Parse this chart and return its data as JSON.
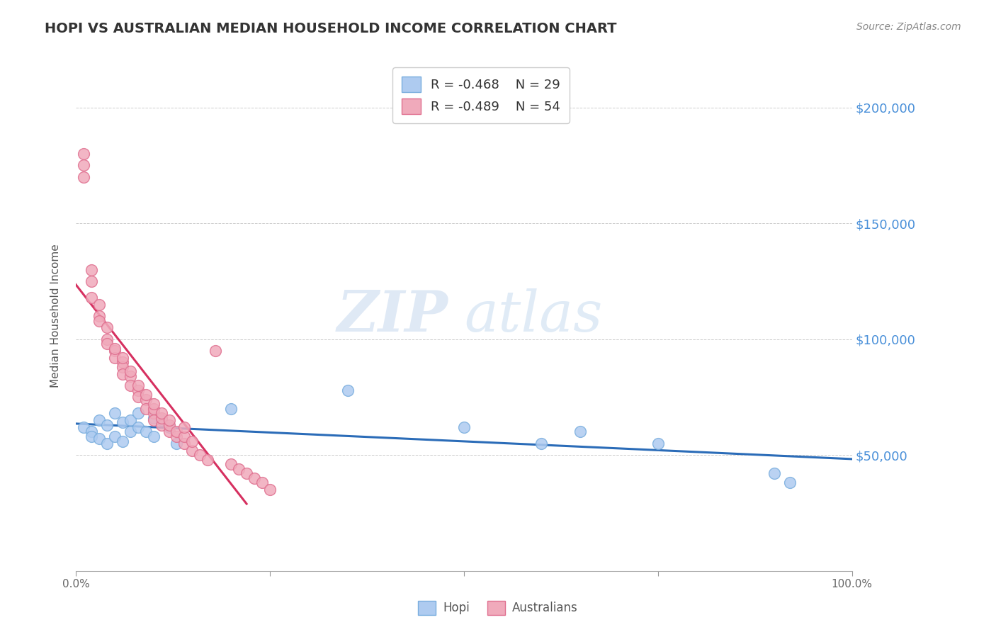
{
  "title": "HOPI VS AUSTRALIAN MEDIAN HOUSEHOLD INCOME CORRELATION CHART",
  "source": "Source: ZipAtlas.com",
  "ylabel": "Median Household Income",
  "xlim": [
    0,
    1.0
  ],
  "ylim": [
    0,
    220000
  ],
  "yticks": [
    0,
    50000,
    100000,
    150000,
    200000
  ],
  "ytick_labels": [
    "",
    "$50,000",
    "$100,000",
    "$150,000",
    "$200,000"
  ],
  "bg_color": "#ffffff",
  "grid_color": "#cccccc",
  "title_color": "#333333",
  "axis_label_color": "#555555",
  "right_tick_color": "#4a90d9",
  "hopi_color": "#aecbf0",
  "hopi_edge": "#7aaede",
  "australians_color": "#f0aabb",
  "australians_edge": "#e07090",
  "hopi_trend_color": "#2b6cb8",
  "australians_trend_color": "#d63060",
  "legend_R_hopi": "R = -0.468",
  "legend_N_hopi": "N = 29",
  "legend_R_aus": "R = -0.489",
  "legend_N_aus": "N = 54",
  "watermark_zip": "ZIP",
  "watermark_atlas": "atlas",
  "watermark_color_zip": "#c8d8ee",
  "watermark_color_atlas": "#b0cce8",
  "hopi_x": [
    0.01,
    0.02,
    0.02,
    0.03,
    0.03,
    0.04,
    0.04,
    0.05,
    0.05,
    0.06,
    0.06,
    0.07,
    0.07,
    0.08,
    0.08,
    0.09,
    0.1,
    0.1,
    0.11,
    0.12,
    0.13,
    0.2,
    0.35,
    0.5,
    0.6,
    0.65,
    0.75,
    0.9,
    0.92
  ],
  "hopi_y": [
    62000,
    60000,
    58000,
    65000,
    57000,
    63000,
    55000,
    68000,
    58000,
    64000,
    56000,
    65000,
    60000,
    68000,
    62000,
    60000,
    66000,
    58000,
    65000,
    62000,
    55000,
    70000,
    78000,
    62000,
    55000,
    60000,
    55000,
    42000,
    38000
  ],
  "aus_x": [
    0.01,
    0.01,
    0.01,
    0.02,
    0.02,
    0.02,
    0.03,
    0.03,
    0.03,
    0.04,
    0.04,
    0.04,
    0.05,
    0.05,
    0.05,
    0.06,
    0.06,
    0.06,
    0.06,
    0.07,
    0.07,
    0.07,
    0.08,
    0.08,
    0.08,
    0.09,
    0.09,
    0.09,
    0.1,
    0.1,
    0.1,
    0.1,
    0.11,
    0.11,
    0.11,
    0.12,
    0.12,
    0.12,
    0.13,
    0.13,
    0.14,
    0.14,
    0.14,
    0.15,
    0.15,
    0.16,
    0.17,
    0.18,
    0.2,
    0.21,
    0.22,
    0.23,
    0.24,
    0.25
  ],
  "aus_y": [
    175000,
    180000,
    170000,
    130000,
    125000,
    118000,
    115000,
    110000,
    108000,
    105000,
    100000,
    98000,
    95000,
    92000,
    96000,
    90000,
    88000,
    85000,
    92000,
    84000,
    80000,
    86000,
    78000,
    75000,
    80000,
    74000,
    70000,
    76000,
    68000,
    65000,
    70000,
    72000,
    63000,
    66000,
    68000,
    60000,
    63000,
    65000,
    58000,
    60000,
    55000,
    58000,
    62000,
    52000,
    56000,
    50000,
    48000,
    95000,
    46000,
    44000,
    42000,
    40000,
    38000,
    35000
  ],
  "aus_trend_x_start": 0.0,
  "aus_trend_x_end": 0.22,
  "hopi_trend_x_start": 0.0,
  "hopi_trend_x_end": 1.0
}
